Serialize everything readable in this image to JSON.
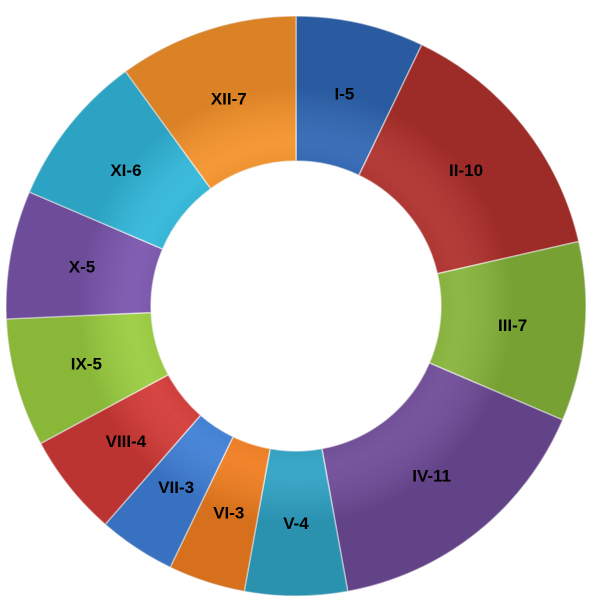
{
  "chart_data": {
    "type": "pie",
    "donut": true,
    "title": "",
    "slices": [
      {
        "category": "I",
        "value": 5,
        "label": "I-5",
        "color": "#2f66b3"
      },
      {
        "category": "II",
        "value": 10,
        "label": "II-10",
        "color": "#b0302c"
      },
      {
        "category": "III",
        "value": 7,
        "label": "III-7",
        "color": "#86b43a"
      },
      {
        "category": "IV",
        "value": 11,
        "label": "IV-11",
        "color": "#6f4b98"
      },
      {
        "category": "V",
        "value": 4,
        "label": "V-4",
        "color": "#2fa2c4"
      },
      {
        "category": "VI",
        "value": 3,
        "label": "VI-3",
        "color": "#f07d1f"
      },
      {
        "category": "VII",
        "value": 3,
        "label": "VII-3",
        "color": "#3f7fd6"
      },
      {
        "category": "VIII",
        "value": 4,
        "label": "VIII-4",
        "color": "#d33a37"
      },
      {
        "category": "IX",
        "value": 5,
        "label": "IX-5",
        "color": "#9acd3f"
      },
      {
        "category": "X",
        "value": 5,
        "label": "X-5",
        "color": "#7a55ad"
      },
      {
        "category": "XI",
        "value": 6,
        "label": "XI-6",
        "color": "#31b7da"
      },
      {
        "category": "XII",
        "value": 7,
        "label": "XII-7",
        "color": "#f5922a"
      }
    ]
  }
}
